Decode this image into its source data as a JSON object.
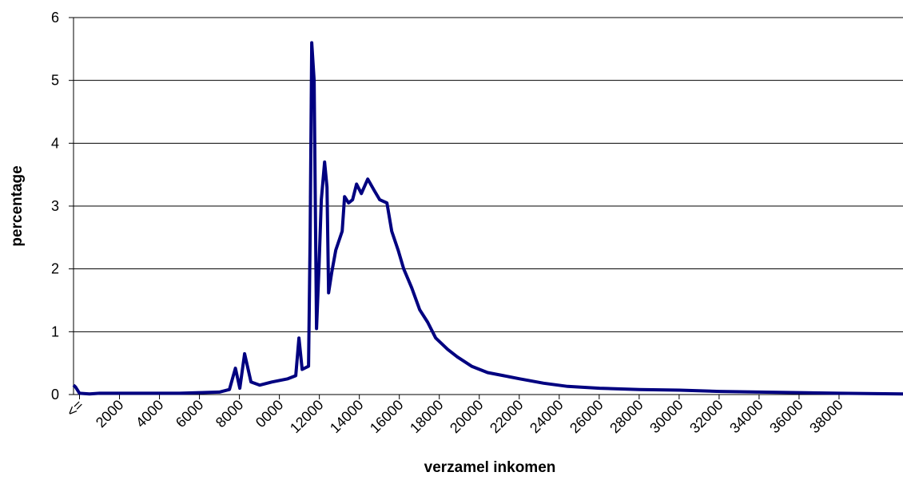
{
  "chart_data": {
    "type": "line",
    "x_label": "verzamel inkomen",
    "y_label": "percentage",
    "x": [
      -300,
      -200,
      0,
      500,
      1000,
      2000,
      3000,
      4000,
      5000,
      6000,
      7000,
      7500,
      7800,
      8020,
      8260,
      8580,
      9020,
      9620,
      10420,
      10820,
      10980,
      11140,
      11460,
      11540,
      11620,
      11740,
      11860,
      11980,
      12100,
      12260,
      12380,
      12460,
      12620,
      12820,
      13140,
      13260,
      13460,
      13660,
      13860,
      14100,
      14420,
      14740,
      15020,
      15380,
      15620,
      15940,
      16220,
      16620,
      17020,
      17420,
      17820,
      18420,
      18900,
      19620,
      20420,
      21220,
      22020,
      23220,
      24420,
      26020,
      28020,
      30020,
      32020,
      34020,
      36020,
      38020,
      41200
    ],
    "series": [
      {
        "name": "percentage",
        "color": "#000080",
        "values": [
          0.15,
          0.12,
          0.02,
          0.01,
          0.02,
          0.02,
          0.02,
          0.02,
          0.02,
          0.03,
          0.04,
          0.08,
          0.42,
          0.1,
          0.65,
          0.2,
          0.15,
          0.2,
          0.25,
          0.3,
          0.9,
          0.4,
          0.45,
          2.5,
          5.6,
          5.0,
          1.05,
          2.0,
          3.1,
          3.7,
          3.3,
          1.62,
          1.95,
          2.3,
          2.6,
          3.15,
          3.05,
          3.1,
          3.35,
          3.2,
          3.43,
          3.25,
          3.1,
          3.05,
          2.6,
          2.3,
          2.0,
          1.7,
          1.35,
          1.15,
          0.9,
          0.72,
          0.6,
          0.45,
          0.35,
          0.3,
          0.25,
          0.18,
          0.13,
          0.1,
          0.08,
          0.07,
          0.05,
          0.04,
          0.03,
          0.02,
          0.01
        ]
      }
    ],
    "xlim": [
      -300,
      41200
    ],
    "xticks": [
      {
        "value": 0,
        "label": "<="
      },
      2000,
      4000,
      6000,
      8000,
      {
        "value": 10000,
        "label": "0000"
      },
      12000,
      14000,
      16000,
      18000,
      20000,
      22000,
      24000,
      26000,
      28000,
      30000,
      32000,
      34000,
      36000,
      38000
    ],
    "ylim": [
      0,
      6
    ],
    "yticks": [
      0,
      1,
      2,
      3,
      4,
      5,
      6
    ],
    "grid": true
  }
}
